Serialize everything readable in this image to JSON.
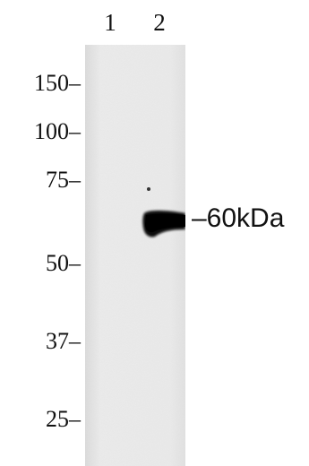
{
  "lanes": [
    "1",
    "2"
  ],
  "markers": [
    "150–",
    "100–",
    "75–",
    "50–",
    "37–",
    "25–"
  ],
  "band_label": "–60kDa",
  "colors": {
    "membrane": "#ebebeb",
    "band": "#0b0b0b",
    "text": "#111111"
  }
}
